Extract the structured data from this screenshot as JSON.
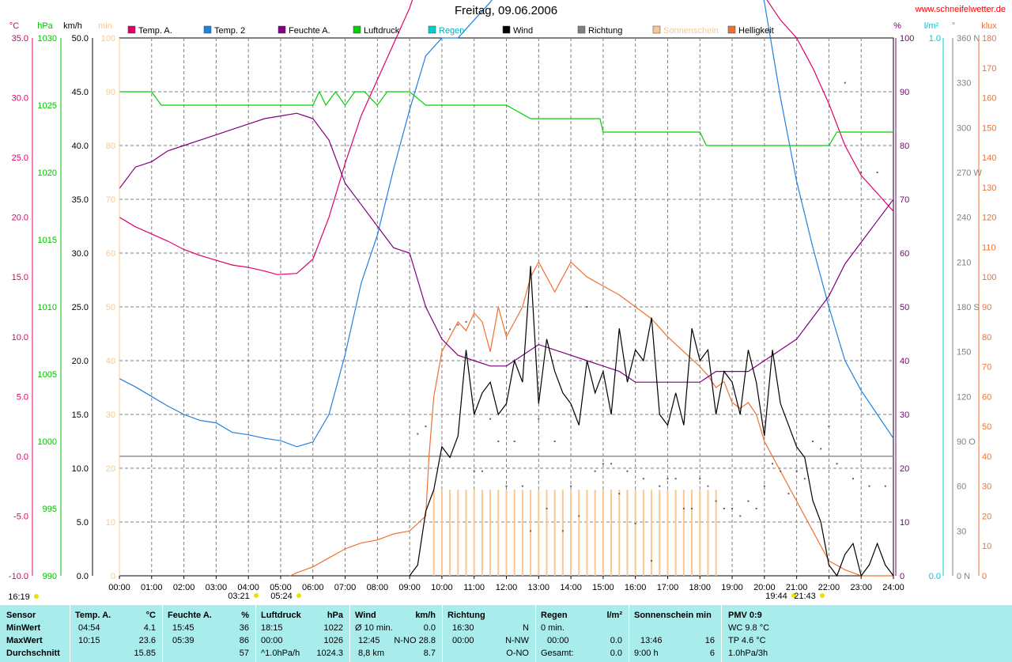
{
  "header": {
    "title": "Freitag, 09.06.2006",
    "site": "www.schneifelwetter.de"
  },
  "axes": {
    "temp_unit": "°C",
    "press_unit": "hPa",
    "wind_unit": "km/h",
    "sun_unit": "min",
    "hum_unit": "%",
    "rain_unit": "l/m²",
    "dir_unit": "°",
    "lux_unit": "klux",
    "temp_ticks": [
      "35.0",
      "30.0",
      "25.0",
      "20.0",
      "15.0",
      "10.0",
      "5.0",
      "0.0",
      "-5.0",
      "-10.0"
    ],
    "press_ticks": [
      "1030",
      "1025",
      "1020",
      "1015",
      "1010",
      "1005",
      "1000",
      "995",
      "990"
    ],
    "wind_ticks": [
      "50.0",
      "45.0",
      "40.0",
      "35.0",
      "30.0",
      "25.0",
      "20.0",
      "15.0",
      "10.0",
      "5.0",
      "0.0"
    ],
    "sun_ticks": [
      "100",
      "90",
      "80",
      "70",
      "60",
      "50",
      "40",
      "30",
      "20",
      "10",
      "0"
    ],
    "hum_ticks": [
      "100",
      "90",
      "80",
      "70",
      "60",
      "50",
      "40",
      "30",
      "20",
      "10",
      "0"
    ],
    "rain_ticks": [
      "1.0",
      "0.0"
    ],
    "dir_ticks": [
      "360 N",
      "330",
      "300",
      "270 W",
      "240",
      "210",
      "180 S",
      "150",
      "120",
      "90 O",
      "60",
      "30",
      "0 N"
    ],
    "lux_ticks": [
      "180",
      "170",
      "160",
      "150",
      "140",
      "130",
      "120",
      "110",
      "100",
      "90",
      "80",
      "70",
      "60",
      "50",
      "40",
      "30",
      "20",
      "10",
      "0"
    ],
    "x_ticks": [
      "00:00",
      "01:00",
      "02:00",
      "03:00",
      "04:00",
      "05:00",
      "06:00",
      "07:00",
      "08:00",
      "09:00",
      "10:00",
      "11:00",
      "12:00",
      "13:00",
      "14:00",
      "15:00",
      "16:00",
      "17:00",
      "18:00",
      "19:00",
      "20:00",
      "21:00",
      "22:00",
      "23:00",
      "24:00"
    ],
    "sun_events": [
      "16:19",
      "03:21",
      "05:24",
      "19:44",
      "21:43"
    ]
  },
  "legend": [
    {
      "label": "Temp. A.",
      "color": "#e0006a"
    },
    {
      "label": "Temp. 2",
      "color": "#2080e0"
    },
    {
      "label": "Feuchte A.",
      "color": "#800080"
    },
    {
      "label": "Luftdruck",
      "color": "#00d000"
    },
    {
      "label": "Regen",
      "color": "#00d0d0"
    },
    {
      "label": "Wind",
      "color": "#000000"
    },
    {
      "label": "Richtung",
      "color": "#808080"
    },
    {
      "label": "Sonnenschein",
      "color": "#f8c890"
    },
    {
      "label": "Helligkeit",
      "color": "#f07030"
    }
  ],
  "chart_data": {
    "type": "line",
    "title": "Freitag, 09.06.2006",
    "x_range_hours": [
      0,
      24
    ],
    "ylim_temp": [
      -10,
      35
    ],
    "ylim_press": [
      990,
      1030
    ],
    "ylim_wind": [
      0,
      50
    ],
    "ylim_hum": [
      0,
      100
    ],
    "ylim_lux": [
      0,
      180
    ],
    "ylim_dir": [
      0,
      360
    ],
    "grid": true,
    "series": [
      {
        "name": "Temp. A.",
        "axis": "temp",
        "color": "#e0006a",
        "x": [
          0,
          0.5,
          1,
          1.5,
          2,
          2.5,
          3,
          3.5,
          4,
          4.5,
          4.9,
          5.5,
          6,
          6.5,
          7,
          7.5,
          8,
          8.5,
          9,
          9.5,
          10,
          10.25,
          10.5,
          11,
          11.5,
          12,
          12.5,
          13,
          13.5,
          14,
          14.5,
          15,
          15.5,
          16,
          16.5,
          17,
          17.5,
          18,
          18.5,
          19,
          19.5,
          20,
          20.5,
          21,
          21.5,
          22,
          22.5,
          23,
          23.5,
          24
        ],
        "y": [
          20,
          19.2,
          18.6,
          18,
          17.3,
          16.8,
          16.4,
          16,
          15.8,
          15.5,
          15.2,
          15.3,
          16.5,
          20,
          24.5,
          28.5,
          31.5,
          34.5,
          37.5,
          41.5,
          42.5,
          43,
          42.7,
          43,
          42.5,
          42.7,
          41.5,
          41,
          41.3,
          42,
          41.5,
          41.8,
          41.6,
          42,
          42,
          42.2,
          42,
          41.7,
          42,
          41.5,
          41.8,
          38.5,
          36.5,
          35,
          32.5,
          29.5,
          26,
          23.5,
          22,
          20.5
        ]
      },
      {
        "name": "Temp. 2",
        "axis": "temp",
        "color": "#2080e0",
        "x": [
          0,
          0.5,
          1,
          1.5,
          2,
          2.5,
          3,
          3.5,
          4,
          4.5,
          5,
          5.5,
          6,
          6.5,
          7,
          7.5,
          8,
          8.5,
          9,
          9.5,
          10,
          10.5,
          11,
          11.5,
          12,
          12.5,
          13,
          13.5,
          14,
          14.5,
          15,
          15.5,
          16,
          16.5,
          17,
          17.5,
          18,
          18.5,
          19,
          19.5,
          20,
          20.5,
          21,
          21.5,
          22,
          22.5,
          23,
          23.5,
          24
        ],
        "y": [
          6.5,
          5.8,
          5.0,
          4.2,
          3.5,
          3.0,
          2.8,
          2.0,
          1.8,
          1.5,
          1.3,
          0.8,
          1.2,
          3.5,
          8.5,
          14.5,
          18.5,
          24,
          29,
          33.5,
          35,
          35,
          36.5,
          38,
          40,
          43.5,
          45.5,
          48.5,
          50.5,
          51.5,
          54,
          54.5,
          55.5,
          55,
          56,
          57,
          54.5,
          51,
          47.5,
          43,
          38,
          30,
          23,
          17.5,
          12.5,
          8,
          5.5,
          3.5,
          1.5
        ]
      },
      {
        "name": "Feuchte A.",
        "axis": "hum",
        "color": "#800080",
        "x": [
          0,
          0.5,
          1,
          1.5,
          2,
          2.5,
          3,
          3.5,
          4,
          4.5,
          5,
          5.5,
          6,
          6.5,
          7,
          7.5,
          8,
          8.5,
          9,
          9.5,
          10,
          10.5,
          11,
          11.5,
          12,
          12.5,
          13,
          13.5,
          14,
          14.5,
          15,
          15.5,
          16,
          16.5,
          17,
          17.5,
          18,
          18.5,
          19,
          19.5,
          20,
          20.5,
          21,
          21.5,
          22,
          22.5,
          23,
          23.5,
          24
        ],
        "y": [
          72,
          76,
          77,
          79,
          80,
          81,
          82,
          83,
          84,
          85,
          85.5,
          86,
          85,
          81,
          73,
          69,
          65,
          61,
          60,
          50,
          44,
          41,
          40,
          39,
          39,
          41,
          43,
          42,
          41,
          40,
          39,
          38,
          36,
          36,
          36,
          36,
          36,
          38,
          38,
          38,
          40,
          42,
          44,
          48,
          52,
          58,
          62,
          66,
          70
        ]
      },
      {
        "name": "Luftdruck",
        "axis": "press",
        "color": "#00d000",
        "x": [
          0,
          1,
          1.3,
          2,
          3,
          4,
          5,
          6,
          6.2,
          6.4,
          6.7,
          7,
          7.3,
          7.6,
          8,
          8.3,
          8.6,
          9,
          9.5,
          10,
          11,
          12,
          12.75,
          13,
          14,
          14.9,
          15,
          16,
          17,
          18,
          18.2,
          19,
          20,
          21,
          22,
          22.25,
          23,
          24
        ],
        "y": [
          1026,
          1026,
          1025,
          1025,
          1025,
          1025,
          1025,
          1025,
          1026,
          1025,
          1026,
          1025,
          1026,
          1026,
          1025,
          1026,
          1026,
          1026,
          1025,
          1025,
          1025,
          1025,
          1024,
          1024,
          1024,
          1024,
          1023,
          1023,
          1023,
          1023,
          1022,
          1022,
          1022,
          1022,
          1022,
          1023,
          1023,
          1023
        ]
      },
      {
        "name": "Wind",
        "axis": "wind",
        "color": "#000000",
        "x": [
          9,
          9.25,
          9.5,
          9.75,
          10,
          10.25,
          10.5,
          10.75,
          11,
          11.25,
          11.5,
          11.75,
          12,
          12.25,
          12.5,
          12.75,
          13,
          13.25,
          13.5,
          13.75,
          14,
          14.25,
          14.5,
          14.75,
          15,
          15.25,
          15.5,
          15.75,
          16,
          16.25,
          16.5,
          16.75,
          17,
          17.25,
          17.5,
          17.75,
          18,
          18.25,
          18.5,
          18.75,
          19,
          19.25,
          19.5,
          19.75,
          20,
          20.25,
          20.5,
          20.75,
          21,
          21.25,
          21.5,
          21.75,
          22,
          22.25,
          22.5,
          22.75,
          23,
          23.25,
          23.5,
          23.75,
          24
        ],
        "y": [
          0,
          1,
          6,
          8,
          12,
          11,
          13,
          21,
          15,
          17,
          18,
          15,
          16,
          20,
          18,
          28.8,
          16,
          22,
          19,
          17,
          16,
          14,
          20,
          17,
          19,
          15,
          23,
          18,
          21,
          20,
          24,
          15,
          14,
          17,
          14,
          23,
          20,
          21,
          15,
          19,
          18,
          15,
          21,
          18,
          13,
          21,
          16,
          14,
          12,
          11,
          7,
          5,
          1,
          0,
          2,
          3,
          0,
          1,
          3,
          1,
          0
        ]
      }
    ],
    "bars": {
      "name": "Sonnenschein",
      "axis": "sun",
      "color": "#f8c890",
      "x": [
        9.75,
        10,
        10.25,
        10.5,
        10.75,
        11,
        11.25,
        11.5,
        11.75,
        12,
        12.25,
        12.5,
        12.75,
        13,
        13.25,
        13.5,
        13.75,
        14,
        14.25,
        14.5,
        14.75,
        15,
        15.25,
        15.5,
        15.75,
        16,
        16.25,
        16.5,
        16.75,
        17,
        17.25,
        17.5,
        17.75,
        18,
        18.25,
        18.5
      ],
      "y": [
        16,
        16,
        16,
        16,
        16,
        16,
        16,
        16,
        16,
        16,
        16,
        16,
        16,
        16,
        16,
        16,
        16,
        16,
        16,
        16,
        16,
        16,
        16,
        16,
        16,
        16,
        16,
        16,
        16,
        16,
        16,
        16,
        16,
        16,
        16,
        16
      ]
    },
    "brightness": {
      "name": "Helligkeit",
      "axis": "lux",
      "color": "#f07030",
      "x": [
        5.3,
        5.5,
        6,
        6.5,
        7,
        7.5,
        8,
        8.5,
        9,
        9.5,
        9.6,
        9.75,
        10,
        10.25,
        10.5,
        10.75,
        11,
        11.25,
        11.5,
        11.75,
        12,
        12.25,
        12.5,
        12.75,
        13,
        13.25,
        13.5,
        13.75,
        14,
        14.5,
        15,
        15.5,
        16,
        16.5,
        17,
        17.5,
        18,
        18.25,
        18.5,
        18.75,
        19,
        19.25,
        19.5,
        19.75,
        20,
        20.5,
        21,
        21.5,
        22,
        22.5,
        23,
        23.5,
        24
      ],
      "y": [
        0,
        1,
        3,
        6,
        9,
        11,
        12,
        14,
        15,
        20,
        40,
        60,
        75,
        80,
        85,
        82,
        88,
        85,
        75,
        90,
        80,
        85,
        90,
        100,
        105,
        100,
        95,
        100,
        105,
        100,
        97,
        94,
        90,
        86,
        80,
        75,
        70,
        67,
        63,
        65,
        58,
        56,
        58,
        54,
        45,
        35,
        25,
        15,
        5,
        2,
        0,
        0,
        0
      ]
    },
    "direction_dots": {
      "name": "Richtung",
      "axis": "dir",
      "x": [
        9.25,
        9.5,
        10.25,
        10.5,
        10.75,
        11,
        11.25,
        11.5,
        11.75,
        12,
        12.25,
        12.5,
        12.75,
        13,
        13.25,
        13.5,
        13.75,
        14,
        14.25,
        14.5,
        14.75,
        15,
        15.25,
        15.5,
        15.75,
        16,
        16.25,
        16.5,
        16.75,
        17,
        17.25,
        17.5,
        17.75,
        18,
        18.25,
        18.5,
        18.75,
        19,
        19.25,
        19.5,
        19.75,
        20,
        20.25,
        20.5,
        20.75,
        21,
        21.25,
        21.5,
        21.75,
        22,
        22.25,
        22.5,
        22.75,
        23,
        23.25,
        23.5,
        23.75
      ],
      "y": [
        95,
        100,
        165,
        168,
        170,
        70,
        70,
        105,
        90,
        60,
        90,
        60,
        30,
        105,
        45,
        90,
        30,
        60,
        40,
        180,
        70,
        75,
        75,
        55,
        70,
        35,
        65,
        10,
        60,
        65,
        65,
        45,
        45,
        65,
        60,
        50,
        45,
        45,
        40,
        50,
        45,
        60,
        75,
        70,
        55,
        70,
        65,
        90,
        85,
        100,
        75,
        330,
        65,
        270,
        60,
        270,
        60
      ]
    }
  },
  "stats": {
    "sensor": {
      "h": "Sensor",
      "r": [
        "MinWert",
        "MaxWert",
        "Durchschnitt"
      ]
    },
    "temp": {
      "h": "Temp. A.",
      "u": "°C",
      "r": [
        [
          "04:54",
          "4.1"
        ],
        [
          "10:15",
          "23.6"
        ],
        [
          "",
          "15.85"
        ]
      ]
    },
    "hum": {
      "h": "Feuchte A.",
      "u": "%",
      "r": [
        [
          "15:45",
          "36"
        ],
        [
          "05:39",
          "86"
        ],
        [
          "",
          "57"
        ]
      ]
    },
    "press": {
      "h": "Luftdruck",
      "u": "hPa",
      "r": [
        [
          "18:15",
          "1022"
        ],
        [
          "00:00",
          "1026"
        ],
        [
          "^1.0hPa/h",
          "1024.3"
        ]
      ]
    },
    "wind": {
      "h": "Wind",
      "u": "km/h",
      "r": [
        [
          "Ø 10 min.",
          "0.0"
        ],
        [
          "12:45",
          "N-NO 28.8"
        ],
        [
          "8,8 km",
          "8.7"
        ]
      ]
    },
    "dir": {
      "h": "Richtung",
      "r": [
        [
          "16:30",
          "N"
        ],
        [
          "00:00",
          "N-NW"
        ],
        [
          "",
          "O-NO"
        ]
      ]
    },
    "rain": {
      "h": "Regen",
      "u": "l/m²",
      "r": [
        [
          "0 min.",
          ""
        ],
        [
          "00:00",
          "0.0"
        ],
        [
          "Gesamt:",
          "0.0"
        ]
      ]
    },
    "sun": {
      "h": "Sonnenschein min",
      "r": [
        [
          "",
          ""
        ],
        [
          "13:46",
          "16"
        ],
        [
          "9:00 h",
          "6"
        ]
      ]
    },
    "pmv": {
      "h": "PMV 0:9",
      "r": [
        "WC 9.8 °C",
        "TP 4.6 °C",
        "1.0hPa/3h"
      ]
    }
  }
}
